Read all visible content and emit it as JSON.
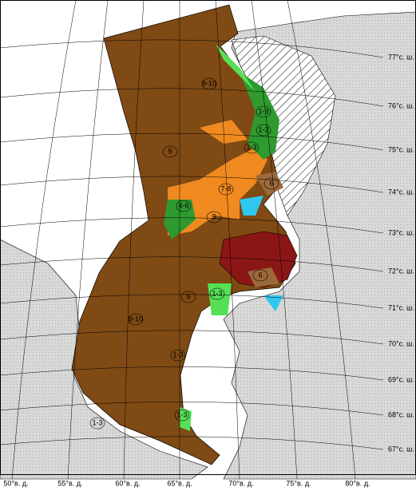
{
  "map": {
    "lat_labels": [
      "77°с. ш.",
      "76°с. ш.",
      "75°с. ш.",
      "74°с. ш.",
      "73°с. ш.",
      "72°с. ш.",
      "71°с. ш.",
      "70°с. ш.",
      "69°с. ш.",
      "68°с. ш.",
      "67°с. ш."
    ],
    "lon_labels": [
      "50°в. д.",
      "55°в. д.",
      "60°в. д.",
      "65°в. д.",
      "70°в. д.",
      "75°в. д.",
      "80°в. д."
    ],
    "zone_labels": [
      "9-10",
      "9",
      "1-3",
      "1-3",
      "1-3",
      "7-8",
      "6",
      "4-6",
      "9",
      "9",
      "6",
      "1-3",
      "1-3",
      "9-10",
      "1-3",
      "1-3"
    ]
  }
}
